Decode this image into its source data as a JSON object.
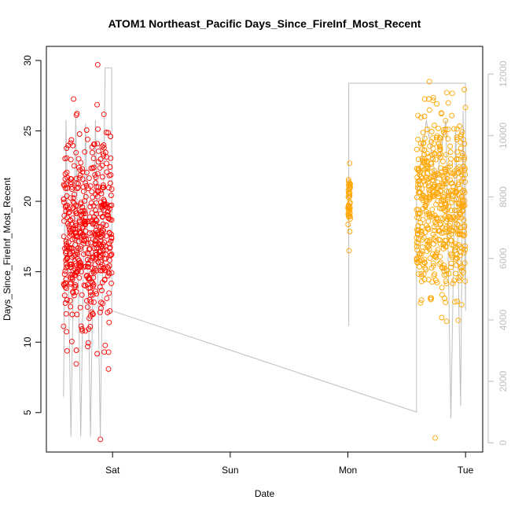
{
  "chart_data": {
    "type": "scatter",
    "title": "ATOM1 Northeast_Pacific Days_Since_FireInf_Most_Recent",
    "xlabel": "Date",
    "ylabel": "Days_Since_FireInf_Most_Recent",
    "x_axis": {
      "kind": "date",
      "ticks": [
        {
          "label": "Sat",
          "value": "Sat 00:00"
        },
        {
          "label": "Sun",
          "value": "Sun 00:00"
        },
        {
          "label": "Mon",
          "value": "Mon 00:00"
        },
        {
          "label": "Tue",
          "value": "Tue 00:00"
        }
      ],
      "range": [
        "Fri 10:30",
        "Tue 03:30"
      ]
    },
    "y_axis": {
      "range": [
        2.2,
        31.0
      ],
      "ticks": [
        5,
        10,
        15,
        20,
        25,
        30
      ]
    },
    "y2_axis": {
      "range": [
        -300,
        12900
      ],
      "ticks": [
        0,
        2000,
        4000,
        6000,
        8000,
        10000,
        12000
      ],
      "color": "#bebebe"
    },
    "grid": false,
    "legend": "none",
    "series": [
      {
        "kind": "points",
        "axis": "left",
        "color": "#ff0000",
        "time_span": [
          "Fri 14:00",
          "Fri 23:50"
        ],
        "count": 520,
        "y_min": 3.1,
        "y_max": 29.7,
        "y_median": 17.5,
        "band": [
          11,
          25
        ]
      },
      {
        "kind": "points",
        "axis": "left",
        "color": "#ffa500",
        "time_span": [
          "Mon 00:00",
          "Mon 00:30"
        ],
        "count": 45,
        "y_min": 16.5,
        "y_max": 22.7,
        "y_median": 20.0,
        "band": [
          18,
          22
        ]
      },
      {
        "kind": "points",
        "axis": "left",
        "color": "#ffa500",
        "time_span": [
          "Mon 14:00",
          "Tue 00:00"
        ],
        "count": 540,
        "y_min": 3.2,
        "y_max": 28.5,
        "y_median": 20.0,
        "band": [
          13.5,
          26.5
        ]
      },
      {
        "kind": "line",
        "axis": "right",
        "color": "#bebebe",
        "points": [
          [
            "Fri 14:00",
            1500
          ],
          [
            "Fri 14:30",
            10500
          ],
          [
            "Fri 15:30",
            200
          ],
          [
            "Fri 16:30",
            10600
          ],
          [
            "Fri 17:30",
            200
          ],
          [
            "Fri 18:30",
            10400
          ],
          [
            "Fri 19:30",
            200
          ],
          [
            "Fri 20:30",
            10500
          ],
          [
            "Fri 21:30",
            200
          ],
          [
            "Fri 22:30",
            12200
          ],
          [
            "Fri 23:50",
            12200
          ],
          [
            "Fri 23:50",
            4300
          ],
          [
            "Mon 14:00",
            1000
          ],
          [
            "Mon 14:00",
            8000
          ],
          [
            "Mon 16:00",
            10500
          ],
          [
            "Mon 18:00",
            8500
          ],
          [
            "Mon 20:00",
            10500
          ],
          [
            "Mon 21:00",
            800
          ],
          [
            "Mon 22:00",
            10200
          ],
          [
            "Mon 23:00",
            1200
          ],
          [
            "Mon 23:30",
            10800
          ],
          [
            "Tue 00:00",
            4300
          ],
          [
            "Tue 00:00",
            11700
          ],
          [
            "Mon 00:10",
            11700
          ],
          [
            "Mon 00:10",
            3800
          ]
        ]
      }
    ]
  }
}
